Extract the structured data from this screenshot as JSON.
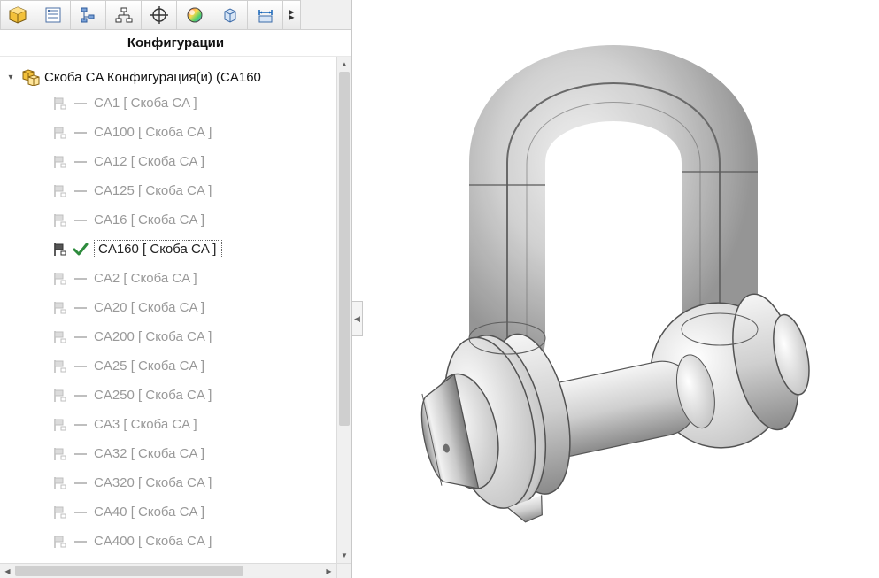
{
  "panel": {
    "heading": "Конфигурации",
    "root_label": "Скоба CA  Конфигурация(и)  (CA160",
    "configs": [
      {
        "label": "CA1 [ Скоба CA  ]",
        "active": false
      },
      {
        "label": "CA100 [ Скоба CA  ]",
        "active": false
      },
      {
        "label": "CA12 [ Скоба CA  ]",
        "active": false
      },
      {
        "label": "CA125 [ Скоба CA  ]",
        "active": false
      },
      {
        "label": "CA16 [ Скоба CA  ]",
        "active": false
      },
      {
        "label": "CA160 [ Скоба CA  ]",
        "active": true
      },
      {
        "label": "CA2 [ Скоба CA  ]",
        "active": false
      },
      {
        "label": "CA20 [ Скоба CA  ]",
        "active": false
      },
      {
        "label": "CA200 [ Скоба CA  ]",
        "active": false
      },
      {
        "label": "CA25 [ Скоба CA  ]",
        "active": false
      },
      {
        "label": "CA250 [ Скоба CA  ]",
        "active": false
      },
      {
        "label": "CA3 [ Скоба CA  ]",
        "active": false
      },
      {
        "label": "CA32 [ Скоба CA  ]",
        "active": false
      },
      {
        "label": "CA320 [ Скоба CA  ]",
        "active": false
      },
      {
        "label": "CA40 [ Скоба CA  ]",
        "active": false
      },
      {
        "label": "CA400 [ Скоба CA  ]",
        "active": false
      }
    ]
  },
  "colors": {
    "panel_border": "#c8c8c8",
    "inactive_text": "#999999",
    "active_text": "#222222",
    "dash": "#bfbfbf",
    "check": "#2e8b3d",
    "root_icon_yellow": "#f3c13a",
    "root_icon_side": "#b88c1b",
    "model_light": "#f2f2f2",
    "model_mid": "#cfcfcf",
    "model_dark": "#8f8f8f",
    "model_edge": "#4f4f4f",
    "viewport_bg": "#ffffff"
  },
  "toolbar_icons": [
    "cube-icon",
    "properties-icon",
    "tree-icon",
    "hierarchy-icon",
    "target-icon",
    "appearance-icon",
    "box-icon",
    "dimension-icon"
  ]
}
